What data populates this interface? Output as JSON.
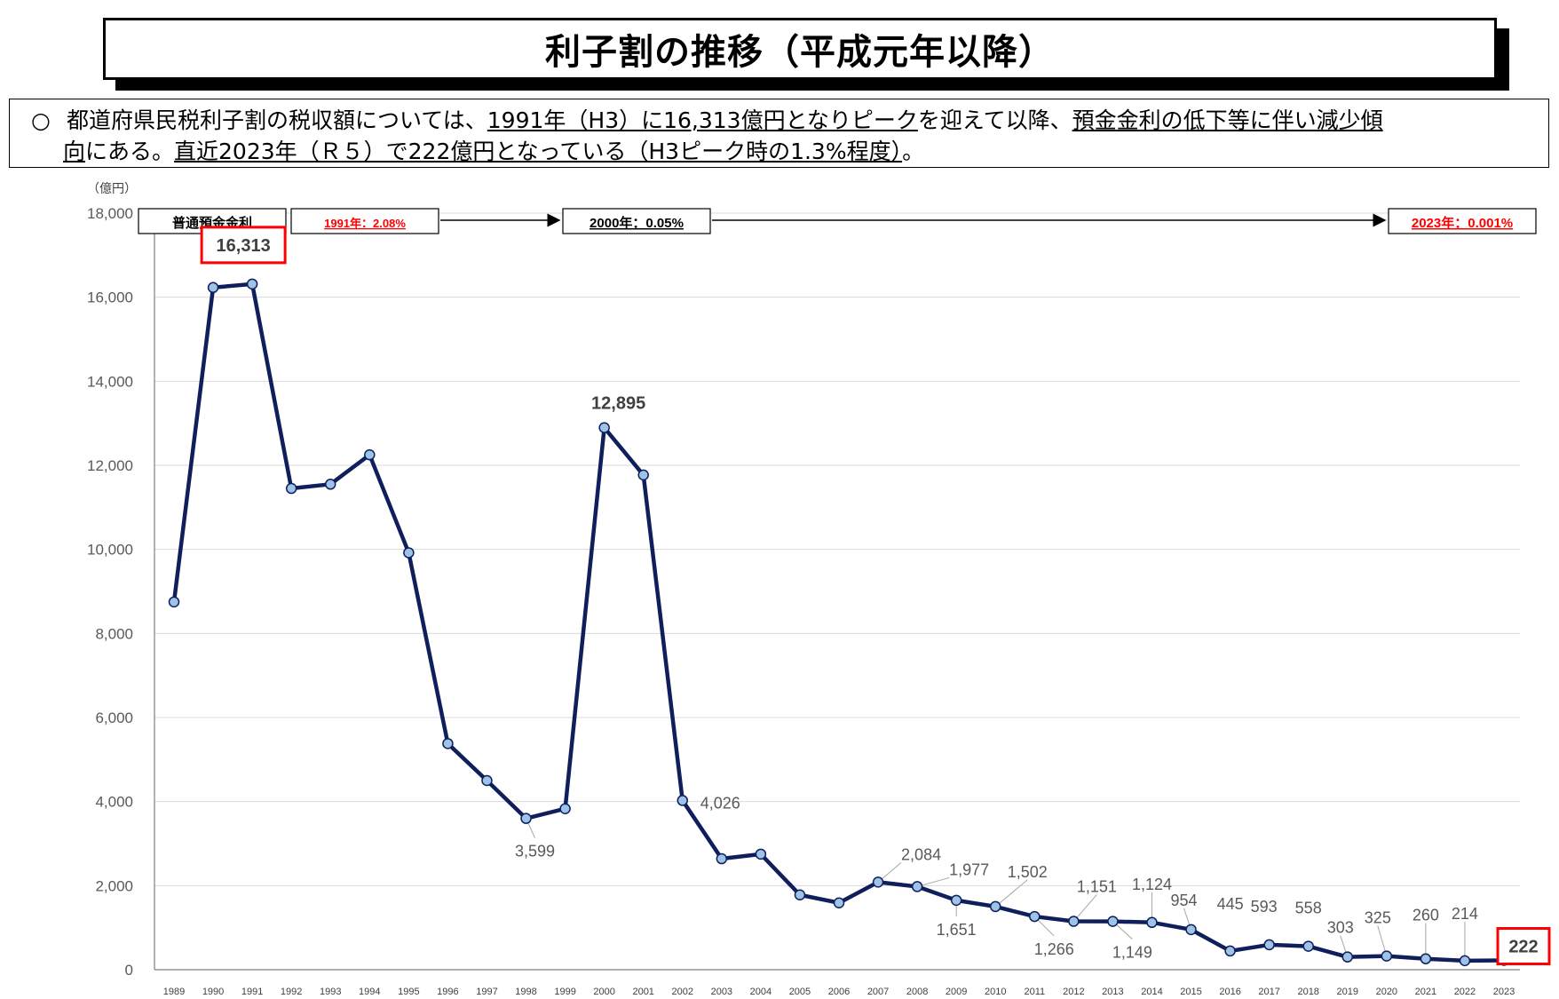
{
  "title": "利子割の推移（平成元年以降）",
  "summary": {
    "bullet": "○",
    "line1_a": "都道府県民税利子割の税収額については、",
    "line1_b": "1991年（H3）に16,313億円となりピーク",
    "line1_c": "を迎えて以降、",
    "line1_d": "預金金利の低下等に伴い減少傾",
    "line2_a": "向",
    "line2_b": "にある。",
    "line2_c": "直近2023年（Ｒ５）で222億円となっている（H3ピーク時の1.3%程度）",
    "line2_d": "。"
  },
  "interest_rate_row": {
    "label": "普通預金金利",
    "rate_1991": "1991年：2.08%",
    "rate_2000": "2000年：0.05%",
    "rate_2023": "2023年：0.001%",
    "highlight_color": "#ff0000"
  },
  "chart_data": {
    "type": "line",
    "unit_label": "（億円）",
    "ylim": [
      0,
      18000
    ],
    "yticks": [
      0,
      2000,
      4000,
      6000,
      8000,
      10000,
      12000,
      14000,
      16000,
      18000
    ],
    "ytick_labels": [
      "0",
      "2,000",
      "4,000",
      "6,000",
      "8,000",
      "10,000",
      "12,000",
      "14,000",
      "16,000",
      "18,000"
    ],
    "x": [
      "1989",
      "1990",
      "1991",
      "1992",
      "1993",
      "1994",
      "1995",
      "1996",
      "1997",
      "1998",
      "1999",
      "2000",
      "2001",
      "2002",
      "2003",
      "2004",
      "2005",
      "2006",
      "2007",
      "2008",
      "2009",
      "2010",
      "2011",
      "2012",
      "2013",
      "2014",
      "2015",
      "2016",
      "2017",
      "2018",
      "2019",
      "2020",
      "2021",
      "2022",
      "2023"
    ],
    "values": [
      8750,
      16230,
      16313,
      11450,
      11550,
      12250,
      9920,
      5380,
      4500,
      3599,
      3830,
      12895,
      11770,
      4026,
      2640,
      2750,
      1780,
      1590,
      2084,
      1977,
      1651,
      1502,
      1266,
      1151,
      1149,
      1124,
      954,
      445,
      593,
      558,
      303,
      325,
      260,
      214,
      222
    ],
    "data_labels": [
      {
        "index": 2,
        "text": "16,313",
        "highlight": true
      },
      {
        "index": 9,
        "text": "3,599"
      },
      {
        "index": 11,
        "text": "12,895",
        "bold": true
      },
      {
        "index": 13,
        "text": "4,026"
      },
      {
        "index": 18,
        "text": "2,084"
      },
      {
        "index": 19,
        "text": "1,977"
      },
      {
        "index": 20,
        "text": "1,651"
      },
      {
        "index": 21,
        "text": "1,502"
      },
      {
        "index": 22,
        "text": "1,266"
      },
      {
        "index": 23,
        "text": "1,151"
      },
      {
        "index": 24,
        "text": "1,149"
      },
      {
        "index": 25,
        "text": "1,124"
      },
      {
        "index": 26,
        "text": "954"
      },
      {
        "index": 27,
        "text": "445"
      },
      {
        "index": 28,
        "text": "593"
      },
      {
        "index": 29,
        "text": "558"
      },
      {
        "index": 30,
        "text": "303"
      },
      {
        "index": 31,
        "text": "325"
      },
      {
        "index": 32,
        "text": "260"
      },
      {
        "index": 33,
        "text": "214"
      },
      {
        "index": 34,
        "text": "222",
        "highlight": true
      }
    ],
    "line_color": "#0f1f5c",
    "marker_color": "#9dc3e6",
    "grid": true
  }
}
